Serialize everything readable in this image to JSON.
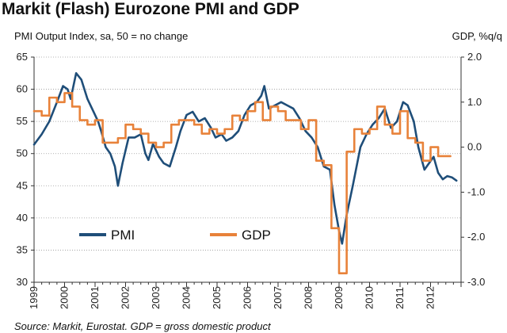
{
  "title": "Markit (Flash) Eurozone PMI and GDP",
  "left_axis_label": "PMI Output Index, sa, 50 = no change",
  "right_axis_label": "GDP, %q/q",
  "source": "Source: Markit, Eurostat. GDP = gross domestic product",
  "colors": {
    "pmi": "#1f4e79",
    "gdp": "#e8823a",
    "grid": "#9a9a9a",
    "axis": "#333333"
  },
  "chart_data": {
    "type": "line",
    "x_ticks": [
      "1999",
      "2000",
      "2001",
      "2002",
      "2003",
      "2004",
      "2005",
      "2006",
      "2007",
      "2008",
      "2009",
      "2010",
      "2011",
      "2012"
    ],
    "y_left": {
      "ticks": [
        "30",
        "35",
        "40",
        "45",
        "50",
        "55",
        "60",
        "65"
      ],
      "ylim": [
        30,
        65
      ]
    },
    "y_right": {
      "ticks": [
        "-3.0",
        "-2.0",
        "-1.0",
        "0.0",
        "1.0",
        "2.0"
      ],
      "ylim": [
        -3.0,
        2.0
      ]
    },
    "grid": "horizontal",
    "legend": [
      {
        "name": "PMI"
      },
      {
        "name": "GDP"
      }
    ],
    "series": [
      {
        "name": "PMI",
        "axis": "left",
        "style": "line",
        "points": [
          [
            1999.0,
            51.4
          ],
          [
            1999.25,
            53.0
          ],
          [
            1999.5,
            55.0
          ],
          [
            1999.75,
            58.0
          ],
          [
            1999.95,
            60.5
          ],
          [
            2000.1,
            60.0
          ],
          [
            2000.2,
            58.5
          ],
          [
            2000.38,
            62.5
          ],
          [
            2000.55,
            61.5
          ],
          [
            2000.75,
            58.5
          ],
          [
            2000.95,
            56.5
          ],
          [
            2001.1,
            55.0
          ],
          [
            2001.2,
            53.5
          ],
          [
            2001.35,
            51.0
          ],
          [
            2001.5,
            50.0
          ],
          [
            2001.65,
            48.0
          ],
          [
            2001.75,
            45.0
          ],
          [
            2001.9,
            48.5
          ],
          [
            2002.1,
            52.5
          ],
          [
            2002.3,
            52.5
          ],
          [
            2002.5,
            53.0
          ],
          [
            2002.65,
            50.0
          ],
          [
            2002.75,
            49.0
          ],
          [
            2002.9,
            51.5
          ],
          [
            2003.1,
            49.5
          ],
          [
            2003.25,
            48.5
          ],
          [
            2003.45,
            48.0
          ],
          [
            2003.65,
            51.0
          ],
          [
            2003.8,
            53.5
          ],
          [
            2004.0,
            56.0
          ],
          [
            2004.2,
            56.5
          ],
          [
            2004.4,
            55.0
          ],
          [
            2004.6,
            55.5
          ],
          [
            2004.8,
            54.0
          ],
          [
            2004.95,
            52.5
          ],
          [
            2005.15,
            53.0
          ],
          [
            2005.3,
            52.0
          ],
          [
            2005.5,
            52.5
          ],
          [
            2005.7,
            53.5
          ],
          [
            2005.9,
            56.0
          ],
          [
            2006.1,
            57.5
          ],
          [
            2006.3,
            58.0
          ],
          [
            2006.45,
            59.0
          ],
          [
            2006.55,
            60.5
          ],
          [
            2006.7,
            57.0
          ],
          [
            2006.9,
            57.5
          ],
          [
            2007.1,
            58.0
          ],
          [
            2007.3,
            57.5
          ],
          [
            2007.5,
            57.0
          ],
          [
            2007.7,
            55.5
          ],
          [
            2007.9,
            53.5
          ],
          [
            2008.1,
            52.5
          ],
          [
            2008.3,
            51.0
          ],
          [
            2008.5,
            48.0
          ],
          [
            2008.7,
            47.5
          ],
          [
            2008.85,
            42.0
          ],
          [
            2009.0,
            38.0
          ],
          [
            2009.1,
            36.0
          ],
          [
            2009.25,
            40.5
          ],
          [
            2009.45,
            45.0
          ],
          [
            2009.7,
            51.0
          ],
          [
            2009.9,
            53.0
          ],
          [
            2010.1,
            54.5
          ],
          [
            2010.3,
            55.5
          ],
          [
            2010.5,
            57.0
          ],
          [
            2010.7,
            54.0
          ],
          [
            2010.9,
            55.0
          ],
          [
            2011.1,
            58.0
          ],
          [
            2011.25,
            57.5
          ],
          [
            2011.45,
            55.0
          ],
          [
            2011.6,
            51.0
          ],
          [
            2011.8,
            47.5
          ],
          [
            2011.95,
            48.5
          ],
          [
            2012.1,
            49.5
          ],
          [
            2012.25,
            47.0
          ],
          [
            2012.4,
            46.0
          ],
          [
            2012.55,
            46.5
          ],
          [
            2012.7,
            46.3
          ],
          [
            2012.85,
            45.8
          ]
        ]
      },
      {
        "name": "GDP",
        "axis": "right",
        "style": "step",
        "points": [
          [
            1999.0,
            0.8
          ],
          [
            1999.25,
            0.7
          ],
          [
            1999.5,
            1.1
          ],
          [
            1999.75,
            1.0
          ],
          [
            2000.0,
            1.2
          ],
          [
            2000.25,
            0.9
          ],
          [
            2000.5,
            0.6
          ],
          [
            2000.75,
            0.5
          ],
          [
            2001.0,
            0.6
          ],
          [
            2001.25,
            0.1
          ],
          [
            2001.5,
            0.1
          ],
          [
            2001.75,
            0.2
          ],
          [
            2002.0,
            0.5
          ],
          [
            2002.25,
            0.4
          ],
          [
            2002.5,
            0.3
          ],
          [
            2002.75,
            0.1
          ],
          [
            2003.0,
            0.0
          ],
          [
            2003.25,
            0.1
          ],
          [
            2003.5,
            0.5
          ],
          [
            2003.75,
            0.6
          ],
          [
            2004.0,
            0.6
          ],
          [
            2004.25,
            0.5
          ],
          [
            2004.5,
            0.3
          ],
          [
            2004.75,
            0.4
          ],
          [
            2005.0,
            0.3
          ],
          [
            2005.25,
            0.4
          ],
          [
            2005.5,
            0.7
          ],
          [
            2005.75,
            0.6
          ],
          [
            2006.0,
            0.8
          ],
          [
            2006.25,
            1.0
          ],
          [
            2006.5,
            0.6
          ],
          [
            2006.75,
            0.9
          ],
          [
            2007.0,
            0.8
          ],
          [
            2007.25,
            0.6
          ],
          [
            2007.5,
            0.6
          ],
          [
            2007.75,
            0.4
          ],
          [
            2008.0,
            0.6
          ],
          [
            2008.25,
            -0.3
          ],
          [
            2008.5,
            -0.4
          ],
          [
            2008.75,
            -1.8
          ],
          [
            2009.0,
            -2.8
          ],
          [
            2009.25,
            -0.1
          ],
          [
            2009.5,
            0.4
          ],
          [
            2009.75,
            0.3
          ],
          [
            2010.0,
            0.4
          ],
          [
            2010.25,
            0.9
          ],
          [
            2010.5,
            0.5
          ],
          [
            2010.75,
            0.3
          ],
          [
            2011.0,
            0.8
          ],
          [
            2011.25,
            0.2
          ],
          [
            2011.5,
            0.1
          ],
          [
            2011.75,
            -0.3
          ],
          [
            2012.0,
            0.0
          ],
          [
            2012.25,
            -0.2
          ],
          [
            2012.45,
            -0.2
          ]
        ]
      }
    ]
  }
}
